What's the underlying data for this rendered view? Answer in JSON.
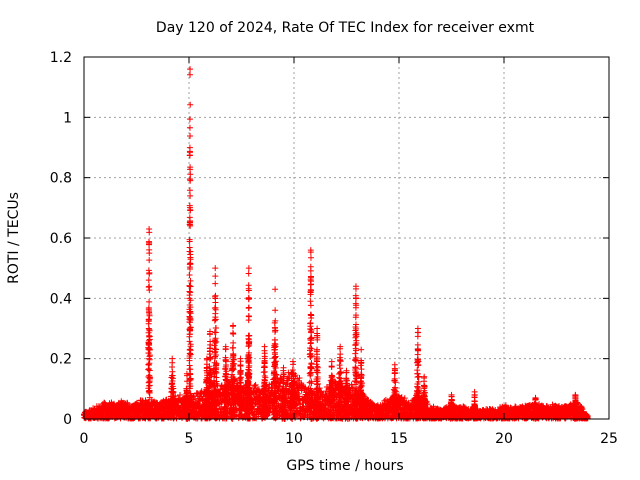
{
  "chart_data": {
    "type": "scatter",
    "title": "Day 120 of 2024, Rate Of TEC Index for receiver exmt",
    "xlabel": "GPS time / hours",
    "ylabel": "ROTI / TECUs",
    "xlim": [
      0,
      25
    ],
    "ylim": [
      0,
      1.2
    ],
    "xticks": [
      0,
      5,
      10,
      15,
      20,
      25
    ],
    "yticks": [
      0,
      0.2,
      0.4,
      0.6,
      0.8,
      1,
      1.2
    ],
    "xtick_labels": [
      "0",
      "5",
      "10",
      "15",
      "20",
      "25"
    ],
    "ytick_labels": [
      "0",
      "0.2",
      "0.4",
      "0.6",
      "0.8",
      "1",
      "1.2"
    ],
    "grid": true,
    "legend": "none",
    "marker": "plus",
    "color": "#ff0000",
    "baseline": [
      [
        0.0,
        0.02
      ],
      [
        0.5,
        0.035
      ],
      [
        1.0,
        0.05
      ],
      [
        1.5,
        0.05
      ],
      [
        2.0,
        0.05
      ],
      [
        2.5,
        0.05
      ],
      [
        3.0,
        0.06
      ],
      [
        3.5,
        0.05
      ],
      [
        4.0,
        0.06
      ],
      [
        4.5,
        0.07
      ],
      [
        5.0,
        0.07
      ],
      [
        5.5,
        0.08
      ],
      [
        6.0,
        0.1
      ],
      [
        6.5,
        0.1
      ],
      [
        7.0,
        0.12
      ],
      [
        7.5,
        0.1
      ],
      [
        8.0,
        0.1
      ],
      [
        8.5,
        0.1
      ],
      [
        9.0,
        0.12
      ],
      [
        9.5,
        0.14
      ],
      [
        10.0,
        0.14
      ],
      [
        10.5,
        0.1
      ],
      [
        11.0,
        0.08
      ],
      [
        11.5,
        0.1
      ],
      [
        12.0,
        0.12
      ],
      [
        12.5,
        0.1
      ],
      [
        13.0,
        0.1
      ],
      [
        13.5,
        0.06
      ],
      [
        14.0,
        0.04
      ],
      [
        14.5,
        0.06
      ],
      [
        15.0,
        0.08
      ],
      [
        15.5,
        0.05
      ],
      [
        16.0,
        0.08
      ],
      [
        16.5,
        0.04
      ],
      [
        17.0,
        0.03
      ],
      [
        17.5,
        0.04
      ],
      [
        18.0,
        0.04
      ],
      [
        18.5,
        0.03
      ],
      [
        19.0,
        0.03
      ],
      [
        19.5,
        0.03
      ],
      [
        20.0,
        0.04
      ],
      [
        20.5,
        0.04
      ],
      [
        21.0,
        0.04
      ],
      [
        21.5,
        0.05
      ],
      [
        22.0,
        0.04
      ],
      [
        22.5,
        0.04
      ],
      [
        23.0,
        0.04
      ],
      [
        23.5,
        0.05
      ],
      [
        24.0,
        0.01
      ]
    ],
    "spikes": [
      {
        "x": 3.1,
        "max": 0.63,
        "width": 0.08
      },
      {
        "x": 4.2,
        "max": 0.2,
        "width": 0.15
      },
      {
        "x": 4.9,
        "max": 0.15,
        "width": 0.1
      },
      {
        "x": 5.05,
        "max": 1.16,
        "width": 0.06
      },
      {
        "x": 5.85,
        "max": 0.2,
        "width": 0.15
      },
      {
        "x": 6.0,
        "max": 0.29,
        "width": 0.12
      },
      {
        "x": 6.25,
        "max": 0.5,
        "width": 0.12
      },
      {
        "x": 6.75,
        "max": 0.24,
        "width": 0.15
      },
      {
        "x": 7.1,
        "max": 0.31,
        "width": 0.15
      },
      {
        "x": 7.45,
        "max": 0.2,
        "width": 0.15
      },
      {
        "x": 7.8,
        "max": 0.2,
        "width": 0.12
      },
      {
        "x": 7.85,
        "max": 0.5,
        "width": 0.05
      },
      {
        "x": 8.6,
        "max": 0.24,
        "width": 0.15
      },
      {
        "x": 9.1,
        "max": 0.43,
        "width": 0.12
      },
      {
        "x": 9.5,
        "max": 0.17,
        "width": 0.2
      },
      {
        "x": 9.95,
        "max": 0.19,
        "width": 0.25
      },
      {
        "x": 10.8,
        "max": 0.56,
        "width": 0.1
      },
      {
        "x": 11.1,
        "max": 0.3,
        "width": 0.1
      },
      {
        "x": 11.8,
        "max": 0.19,
        "width": 0.25
      },
      {
        "x": 12.2,
        "max": 0.24,
        "width": 0.2
      },
      {
        "x": 12.5,
        "max": 0.16,
        "width": 0.2
      },
      {
        "x": 12.95,
        "max": 0.44,
        "width": 0.1
      },
      {
        "x": 13.2,
        "max": 0.23,
        "width": 0.12
      },
      {
        "x": 14.8,
        "max": 0.18,
        "width": 0.15
      },
      {
        "x": 15.9,
        "max": 0.3,
        "width": 0.1
      },
      {
        "x": 16.2,
        "max": 0.14,
        "width": 0.15
      },
      {
        "x": 17.5,
        "max": 0.08,
        "width": 0.15
      },
      {
        "x": 18.6,
        "max": 0.09,
        "width": 0.05
      },
      {
        "x": 21.5,
        "max": 0.07,
        "width": 0.2
      },
      {
        "x": 23.4,
        "max": 0.08,
        "width": 0.1
      }
    ]
  }
}
